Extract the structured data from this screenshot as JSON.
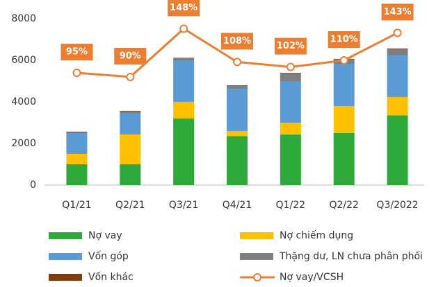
{
  "chart_data": {
    "type": "bar",
    "stacked": true,
    "categories": [
      "Q1/21",
      "Q2/21",
      "Q3/21",
      "Q4/21",
      "Q1/22",
      "Q2/22",
      "Q3/2022"
    ],
    "series": [
      {
        "name": "Nợ vay",
        "color": "#2eaa3a",
        "values": [
          1000,
          1000,
          3200,
          2350,
          2430,
          2500,
          3350
        ]
      },
      {
        "name": "Nợ chiếm dụng",
        "color": "#ffc000",
        "values": [
          500,
          1430,
          800,
          250,
          570,
          1300,
          880
        ]
      },
      {
        "name": "Vốn góp",
        "color": "#5b9bd5",
        "values": [
          1000,
          1020,
          2000,
          2030,
          1980,
          2020,
          2000
        ]
      },
      {
        "name": "Thặng dư, LN chưa phân phối",
        "color": "#7f7f7f",
        "values": [
          50,
          100,
          100,
          150,
          400,
          230,
          320
        ]
      },
      {
        "name": "Vốn khác",
        "color": "#843c0c",
        "values": [
          20,
          20,
          20,
          20,
          20,
          20,
          20
        ]
      },
      {
        "name": "Nợ vay/VCSH",
        "type": "line",
        "axis": "y2",
        "color": "#ed7d31",
        "values": [
          95,
          90,
          148,
          108,
          102,
          110,
          143
        ],
        "value_labels": [
          "95%",
          "90%",
          "148%",
          "108%",
          "102%",
          "110%",
          "143%"
        ]
      }
    ],
    "ylim": [
      0,
      8000
    ],
    "yticks": [
      0,
      2000,
      4000,
      6000,
      8000
    ],
    "y2lim": [
      -40,
      160
    ],
    "grid": false
  }
}
